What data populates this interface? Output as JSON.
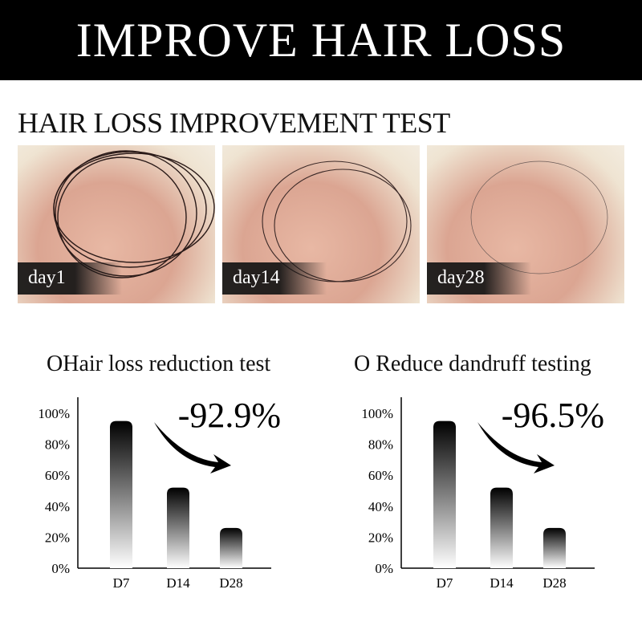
{
  "banner_title": "IMPROVE HAIR LOSS",
  "section_title": "HAIR LOSS IMPROVEMENT TEST",
  "photos": [
    {
      "label": "day1"
    },
    {
      "label": "day14"
    },
    {
      "label": "day28"
    }
  ],
  "chart_data": [
    {
      "type": "bar",
      "title": "OHair loss reduction test",
      "annotation": "-92.9%",
      "categories": [
        "D7",
        "D14",
        "D28"
      ],
      "values": [
        95,
        52,
        26
      ],
      "yticks": [
        "0%",
        "20%",
        "40%",
        "60%",
        "80%",
        "100%"
      ],
      "ylim": [
        0,
        100
      ],
      "grid": false
    },
    {
      "type": "bar",
      "title": "O Reduce dandruff testing",
      "annotation": "-96.5%",
      "categories": [
        "D7",
        "D14",
        "D28"
      ],
      "values": [
        95,
        52,
        26
      ],
      "yticks": [
        "0%",
        "20%",
        "40%",
        "60%",
        "80%",
        "100%"
      ],
      "ylim": [
        0,
        100
      ],
      "grid": false
    }
  ]
}
